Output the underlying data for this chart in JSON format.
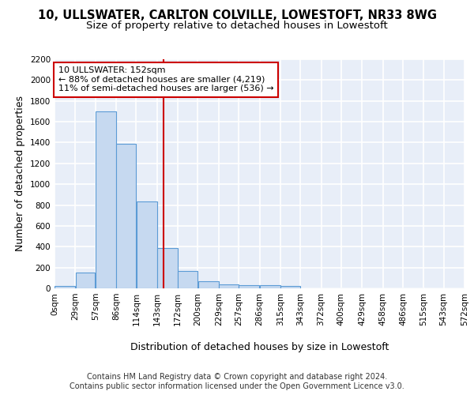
{
  "title": "10, ULLSWATER, CARLTON COLVILLE, LOWESTOFT, NR33 8WG",
  "subtitle": "Size of property relative to detached houses in Lowestoft",
  "xlabel": "Distribution of detached houses by size in Lowestoft",
  "ylabel": "Number of detached properties",
  "bin_edges": [
    0,
    29,
    57,
    86,
    114,
    143,
    172,
    200,
    229,
    257,
    286,
    315,
    343,
    372,
    400,
    429,
    458,
    486,
    515,
    543,
    572
  ],
  "bar_heights": [
    20,
    155,
    1700,
    1390,
    835,
    390,
    165,
    65,
    40,
    30,
    30,
    20,
    0,
    0,
    0,
    0,
    0,
    0,
    0,
    0
  ],
  "bar_color": "#c6d9f0",
  "bar_edge_color": "#5b9bd5",
  "property_value": 152,
  "vline_color": "#cc0000",
  "annotation_line1": "10 ULLSWATER: 152sqm",
  "annotation_line2": "← 88% of detached houses are smaller (4,219)",
  "annotation_line3": "11% of semi-detached houses are larger (536) →",
  "annotation_box_color": "#ffffff",
  "annotation_box_edge_color": "#cc0000",
  "ylim": [
    0,
    2200
  ],
  "yticks": [
    0,
    200,
    400,
    600,
    800,
    1000,
    1200,
    1400,
    1600,
    1800,
    2000,
    2200
  ],
  "tick_labels": [
    "0sqm",
    "29sqm",
    "57sqm",
    "86sqm",
    "114sqm",
    "143sqm",
    "172sqm",
    "200sqm",
    "229sqm",
    "257sqm",
    "286sqm",
    "315sqm",
    "343sqm",
    "372sqm",
    "400sqm",
    "429sqm",
    "458sqm",
    "486sqm",
    "515sqm",
    "543sqm",
    "572sqm"
  ],
  "footer_text": "Contains HM Land Registry data © Crown copyright and database right 2024.\nContains public sector information licensed under the Open Government Licence v3.0.",
  "bg_color": "#e8eef8",
  "grid_color": "#ffffff",
  "fig_bg_color": "#ffffff",
  "title_fontsize": 10.5,
  "subtitle_fontsize": 9.5,
  "label_fontsize": 9,
  "tick_fontsize": 7.5,
  "footer_fontsize": 7,
  "annotation_fontsize": 8
}
